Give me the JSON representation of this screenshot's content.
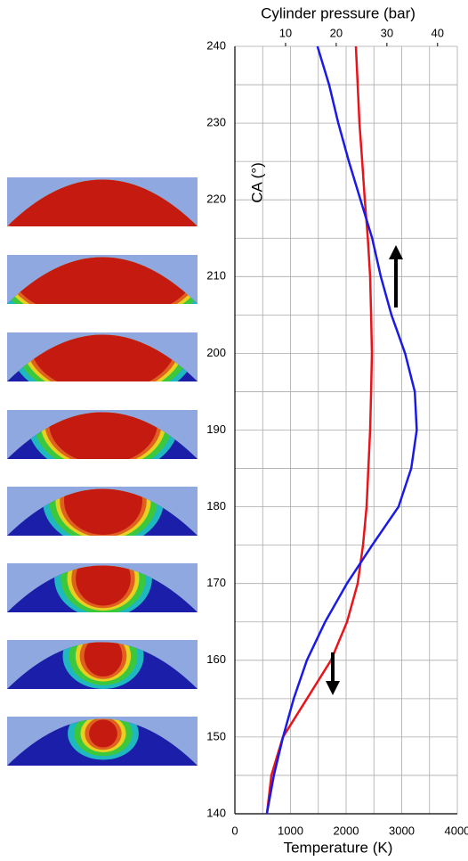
{
  "chart_data": {
    "type": "line",
    "x_label": "Temperature (K)",
    "x2_label": "Cylinder pressure (bar)",
    "y_label": "CA (°)",
    "y": [
      140,
      145,
      150,
      155,
      160,
      165,
      170,
      175,
      180,
      185,
      190,
      195,
      200,
      205,
      210,
      215,
      220,
      225,
      230,
      235,
      240
    ],
    "series": [
      {
        "color": "#e8141a",
        "axis": "x",
        "values": [
          576,
          656,
          864,
          1296,
          1728,
          2016,
          2208,
          2304,
          2368,
          2400,
          2432,
          2450,
          2464,
          2450,
          2432,
          2390,
          2336,
          2290,
          2240,
          2208,
          2176
        ]
      },
      {
        "color": "#1a1ae6",
        "axis": "x2",
        "values": [
          6.3,
          7.7,
          9.5,
          11.6,
          14.2,
          17.8,
          22.1,
          27.1,
          32.3,
          34.8,
          35.9,
          35.5,
          33.6,
          30.9,
          28.8,
          27.1,
          24.8,
          22.5,
          20.4,
          18.6,
          16.3
        ]
      }
    ],
    "xlim": [
      0,
      4000
    ],
    "xticks": [
      0,
      1000,
      2000,
      3000,
      4000
    ],
    "x_minor_ticks": [
      500,
      1500,
      2500,
      3500
    ],
    "x2lim": [
      0,
      43.9
    ],
    "x2ticks": [
      10,
      20,
      30,
      40
    ],
    "ylim": [
      140,
      240
    ],
    "yticks": [
      140,
      150,
      160,
      170,
      180,
      190,
      200,
      210,
      220,
      230,
      240
    ],
    "y_minor_ticks": [
      145,
      155,
      165,
      175,
      185,
      195,
      205,
      215,
      225,
      235
    ],
    "grid": true
  }
}
